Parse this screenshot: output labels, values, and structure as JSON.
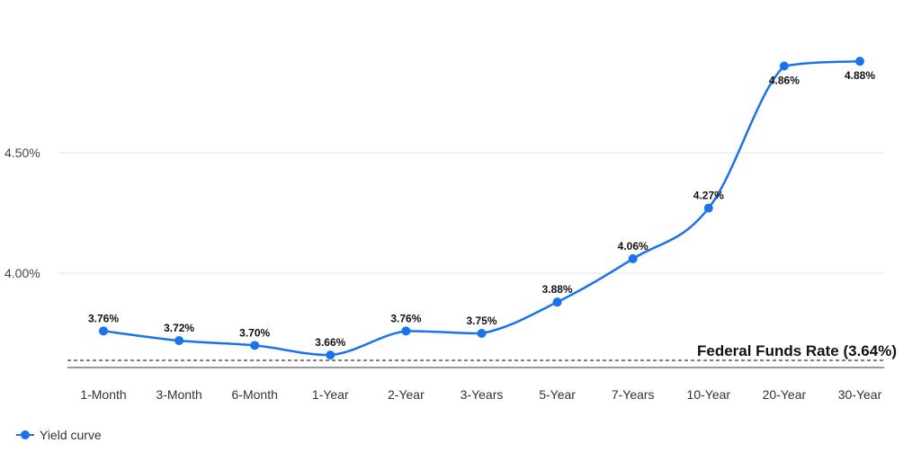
{
  "chart_data": {
    "type": "line",
    "title": "",
    "xlabel": "",
    "ylabel": "",
    "categories": [
      "1-Month",
      "3-Month",
      "6-Month",
      "1-Year",
      "2-Year",
      "3-Years",
      "5-Year",
      "7-Years",
      "10-Year",
      "20-Year",
      "30-Year"
    ],
    "series": [
      {
        "name": "Yield curve",
        "values": [
          3.76,
          3.72,
          3.7,
          3.66,
          3.76,
          3.75,
          3.88,
          4.06,
          4.27,
          4.86,
          4.88
        ],
        "labels": [
          "3.76%",
          "3.72%",
          "3.70%",
          "3.66%",
          "3.76%",
          "3.75%",
          "3.88%",
          "4.06%",
          "4.27%",
          "4.86%",
          "4.88%"
        ],
        "color": "#1a73e8"
      }
    ],
    "y_ticks": [
      {
        "value": 4.0,
        "label": "4.00%"
      },
      {
        "value": 4.5,
        "label": "4.50%"
      }
    ],
    "ylim": [
      3.6,
      4.97
    ],
    "grid": true,
    "reference_line": {
      "value": 3.64,
      "label": "Federal Funds Rate (3.64%)",
      "style": "dashed"
    },
    "legend": {
      "position": "bottom-left",
      "entries": [
        "Yield curve"
      ]
    }
  }
}
